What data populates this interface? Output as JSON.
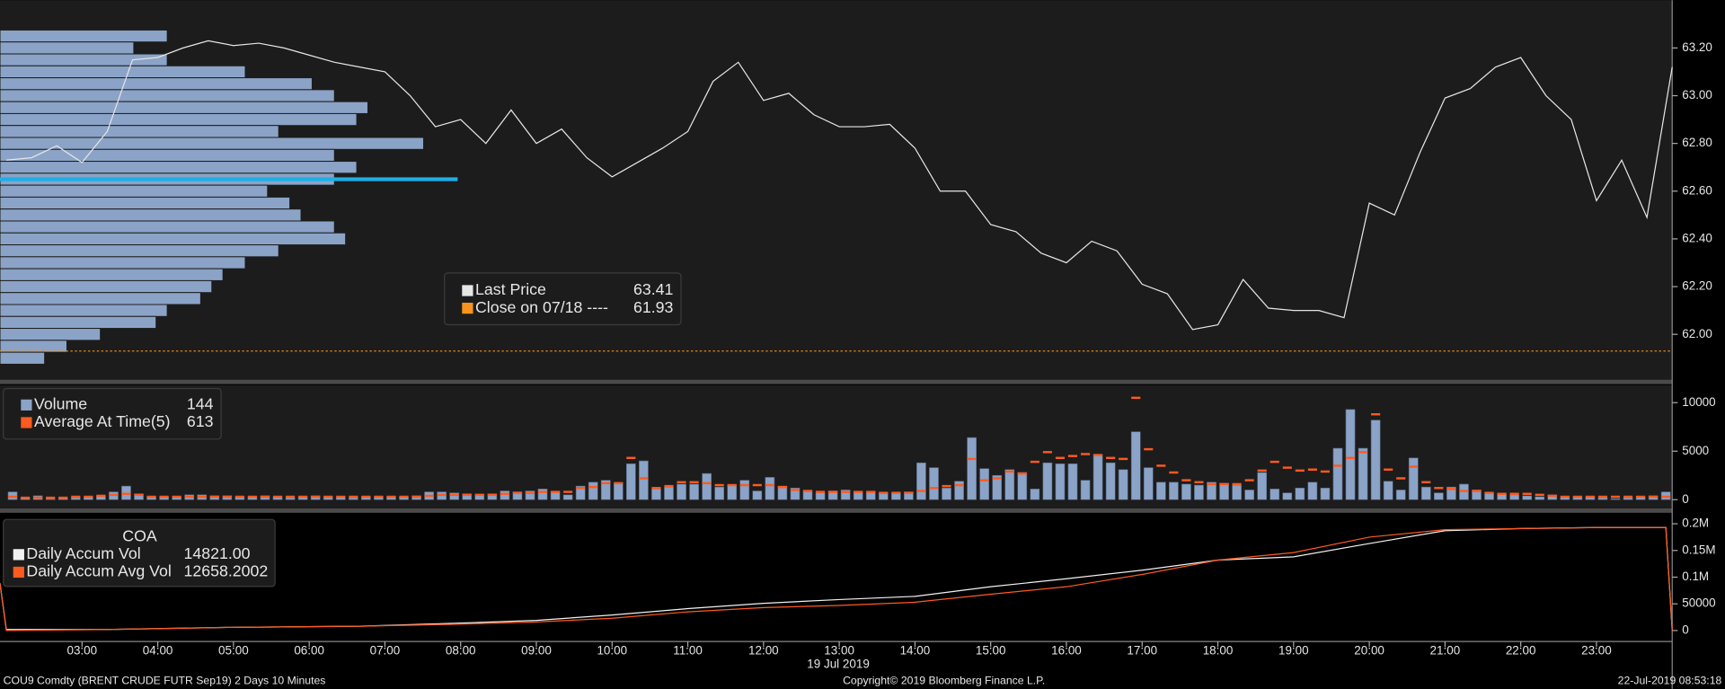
{
  "chart_data": [
    {
      "type": "line",
      "xlim": [
        115,
        1440
      ],
      "ylim": [
        61.81,
        63.4
      ],
      "yticks": [
        {
          "value": 62,
          "label": "62.00"
        },
        {
          "value": 62.2,
          "label": "62.20"
        },
        {
          "value": 62.4,
          "label": "62.40"
        },
        {
          "value": 62.6,
          "label": "62.60"
        },
        {
          "value": 62.8,
          "label": "62.80"
        },
        {
          "value": 63,
          "label": "63.00"
        },
        {
          "value": 63.2,
          "label": "63.20"
        }
      ],
      "x": [
        120,
        140,
        160,
        180,
        200,
        220,
        240,
        260,
        280,
        300,
        320,
        340,
        360,
        380,
        400,
        420,
        440,
        460,
        480,
        500,
        520,
        540,
        560,
        580,
        600,
        620,
        640,
        660,
        680,
        700,
        720,
        740,
        760,
        780,
        800,
        820,
        840,
        860,
        880,
        900,
        920,
        940,
        960,
        980,
        1000,
        1020,
        1040,
        1060,
        1080,
        1100,
        1120,
        1140,
        1160,
        1180,
        1200,
        1220,
        1240,
        1260,
        1280,
        1300,
        1320,
        1340,
        1360,
        1380,
        1400,
        1420,
        1440
      ],
      "series": [
        {
          "name": "Last Price",
          "legend_value": 63.41,
          "color": "#e6e6e6",
          "values": [
            62.73,
            62.74,
            62.79,
            62.72,
            62.85,
            63.15,
            63.16,
            63.2,
            63.23,
            63.21,
            63.22,
            63.2,
            63.17,
            63.14,
            63.12,
            63.1,
            63.0,
            62.87,
            62.9,
            62.8,
            62.94,
            62.8,
            62.86,
            62.74,
            62.66,
            62.72,
            62.78,
            62.85,
            63.06,
            63.14,
            62.98,
            63.01,
            62.92,
            62.87,
            62.87,
            62.88,
            62.78,
            62.6,
            62.6,
            62.46,
            62.43,
            62.34,
            62.3,
            62.39,
            62.35,
            62.21,
            62.17,
            62.02,
            62.04,
            62.23,
            62.11,
            62.1,
            62.1,
            62.07,
            62.55,
            62.5,
            62.76,
            62.99,
            63.03,
            63.12,
            63.16,
            63.0,
            62.9,
            62.56,
            62.73,
            62.49,
            63.12
          ]
        }
      ],
      "close": {
        "label": "Close on 07/18 ----",
        "value": 61.93,
        "color": "#f7941d"
      },
      "profile": {
        "levels": [
          63.25,
          63.2,
          63.15,
          63.1,
          63.05,
          63,
          62.95,
          62.9,
          62.85,
          62.8,
          62.75,
          62.7,
          62.65,
          62.6,
          62.55,
          62.5,
          62.45,
          62.4,
          62.35,
          62.3,
          62.25,
          62.2,
          62.15,
          62.1,
          62.05,
          62,
          61.95,
          61.9
        ],
        "values": [
          150,
          120,
          150,
          220,
          280,
          300,
          330,
          320,
          250,
          380,
          300,
          320,
          300,
          240,
          260,
          270,
          300,
          310,
          250,
          220,
          200,
          190,
          180,
          150,
          140,
          90,
          60,
          40
        ],
        "xlim": [
          0,
          1500
        ],
        "color": "#8ba3c7"
      },
      "poc": {
        "value": 62.65,
        "color": "#1ab0e8"
      }
    },
    {
      "type": "bar",
      "xlim": [
        115,
        1440
      ],
      "ylim": [
        -900,
        11800
      ],
      "yticks": [
        0,
        5000,
        10000
      ],
      "x": [
        120,
        130,
        140,
        150,
        160,
        170,
        180,
        190,
        200,
        210,
        220,
        230,
        240,
        250,
        260,
        270,
        280,
        290,
        300,
        310,
        320,
        330,
        340,
        350,
        360,
        370,
        380,
        390,
        400,
        410,
        420,
        430,
        440,
        450,
        460,
        470,
        480,
        490,
        500,
        510,
        520,
        530,
        540,
        550,
        560,
        570,
        580,
        590,
        600,
        610,
        620,
        630,
        640,
        650,
        660,
        670,
        680,
        690,
        700,
        710,
        720,
        730,
        740,
        750,
        760,
        770,
        780,
        790,
        800,
        810,
        820,
        830,
        840,
        850,
        860,
        870,
        880,
        890,
        900,
        910,
        920,
        930,
        940,
        950,
        960,
        970,
        980,
        990,
        1000,
        1010,
        1020,
        1030,
        1040,
        1050,
        1060,
        1070,
        1080,
        1090,
        1100,
        1110,
        1120,
        1130,
        1140,
        1150,
        1160,
        1170,
        1180,
        1190,
        1200,
        1210,
        1220,
        1230,
        1240,
        1250,
        1260,
        1270,
        1280,
        1290,
        1300,
        1310,
        1320,
        1330,
        1340,
        1350,
        1360,
        1370,
        1380,
        1390,
        1400,
        1410,
        1420,
        1430
      ],
      "series": [
        {
          "name": "Volume",
          "legend_value": 144,
          "color": "#8ba3c7",
          "values": [
            800,
            200,
            400,
            100,
            200,
            200,
            300,
            400,
            800,
            1400,
            600,
            300,
            300,
            300,
            500,
            500,
            400,
            400,
            300,
            300,
            400,
            300,
            200,
            300,
            400,
            300,
            300,
            200,
            300,
            300,
            300,
            300,
            400,
            800,
            800,
            700,
            600,
            500,
            600,
            900,
            800,
            900,
            1100,
            800,
            500,
            1400,
            1800,
            2000,
            1700,
            3700,
            4000,
            1100,
            1300,
            1600,
            1600,
            2700,
            1300,
            1500,
            2000,
            900,
            2300,
            1400,
            1200,
            900,
            700,
            900,
            1000,
            800,
            800,
            700,
            700,
            800,
            3800,
            3300,
            1200,
            1900,
            6400,
            3200,
            2500,
            3100,
            2800,
            1100,
            3800,
            3700,
            3700,
            2000,
            4600,
            3800,
            3100,
            7000,
            3300,
            1800,
            1800,
            1600,
            1500,
            1800,
            1700,
            1500,
            1000,
            2800,
            1100,
            700,
            1200,
            1800,
            1200,
            5300,
            9300,
            5300,
            8200,
            1900,
            1000,
            4300,
            1300,
            700,
            1300,
            1600,
            1000,
            700,
            600,
            500,
            400,
            300,
            500,
            300,
            300,
            300,
            200,
            100,
            200,
            300,
            400,
            800
          ]
        },
        {
          "name": "Average At Time(5)",
          "legend_value": 613,
          "color": "#ff5a1f",
          "values": [
            300,
            200,
            200,
            200,
            200,
            300,
            300,
            400,
            500,
            600,
            500,
            300,
            300,
            300,
            300,
            300,
            300,
            300,
            300,
            300,
            300,
            300,
            300,
            300,
            300,
            300,
            300,
            300,
            300,
            300,
            300,
            300,
            300,
            400,
            500,
            500,
            500,
            500,
            500,
            600,
            700,
            700,
            800,
            800,
            800,
            1200,
            1300,
            1700,
            1700,
            4300,
            2200,
            1200,
            1400,
            1800,
            1800,
            1700,
            1500,
            1500,
            1500,
            1500,
            1500,
            1300,
            1000,
            900,
            800,
            800,
            800,
            800,
            800,
            700,
            700,
            700,
            900,
            1200,
            1400,
            1500,
            4200,
            2000,
            2200,
            2900,
            2700,
            3900,
            4900,
            4300,
            4500,
            4700,
            4600,
            4300,
            4200,
            10500,
            5200,
            3500,
            2800,
            2000,
            1800,
            1600,
            1600,
            1600,
            2000,
            3000,
            3900,
            3300,
            3000,
            3100,
            2900,
            3500,
            4300,
            4900,
            8800,
            3100,
            2200,
            3400,
            1800,
            1200,
            1100,
            900,
            900,
            700,
            600,
            600,
            600,
            500,
            400,
            300,
            300,
            300,
            300,
            300,
            300,
            300,
            300,
            300
          ]
        }
      ]
    },
    {
      "type": "line",
      "title": "COA",
      "xlim": [
        115,
        1440
      ],
      "ylim": [
        -18500,
        218500
      ],
      "yticks": [
        0,
        50000,
        {
          "value": 100000,
          "label": "0.1M"
        },
        {
          "value": 150000,
          "label": "0.15M"
        },
        {
          "value": 200000,
          "label": "0.2M"
        }
      ],
      "xticks": [
        {
          "value": 180,
          "label": "03:00"
        },
        {
          "value": 240,
          "label": "04:00"
        },
        {
          "value": 300,
          "label": "05:00"
        },
        {
          "value": 360,
          "label": "06:00"
        },
        {
          "value": 420,
          "label": "07:00"
        },
        {
          "value": 480,
          "label": "08:00"
        },
        {
          "value": 540,
          "label": "09:00"
        },
        {
          "value": 600,
          "label": "10:00"
        },
        {
          "value": 660,
          "label": "11:00"
        },
        {
          "value": 720,
          "label": "12:00"
        },
        {
          "value": 780,
          "label": "13:00"
        },
        {
          "value": 840,
          "label": "14:00"
        },
        {
          "value": 900,
          "label": "15:00"
        },
        {
          "value": 960,
          "label": "16:00"
        },
        {
          "value": 1020,
          "label": "17:00"
        },
        {
          "value": 1080,
          "label": "18:00"
        },
        {
          "value": 1140,
          "label": "19:00"
        },
        {
          "value": 1200,
          "label": "20:00"
        },
        {
          "value": 1260,
          "label": "21:00"
        },
        {
          "value": 1320,
          "label": "22:00"
        },
        {
          "value": 1380,
          "label": "23:00"
        }
      ],
      "xlabel": "19 Jul 2019",
      "x": [
        115,
        120,
        200,
        300,
        400,
        480,
        540,
        600,
        660,
        720,
        780,
        840,
        900,
        960,
        1020,
        1080,
        1140,
        1200,
        1260,
        1320,
        1380,
        1435,
        1440
      ],
      "series": [
        {
          "name": "Daily Accum Vol",
          "legend_value": "14821.00",
          "color": "#f2f2f2",
          "values": [
            88500,
            2000,
            2000,
            6000,
            8000,
            14000,
            19000,
            29000,
            41000,
            51000,
            58000,
            64000,
            82000,
            97000,
            113000,
            132000,
            138000,
            163000,
            187000,
            191000,
            193000,
            193000,
            0
          ]
        },
        {
          "name": "Daily Accum Avg Vol",
          "legend_value": 12658.2002,
          "color": "#ff5a1f",
          "values": [
            88500,
            0,
            2000,
            6000,
            8000,
            12000,
            16000,
            23000,
            35000,
            43000,
            47000,
            53000,
            68000,
            82000,
            105000,
            132000,
            146000,
            175000,
            189000,
            191000,
            193000,
            193000,
            0
          ]
        }
      ]
    }
  ],
  "footer": {
    "left": "COU9 Comdty (BRENT CRUDE FUTR  Sep19) 2 Days 10 Minutes",
    "copyright": "Copyright© 2019 Bloomberg Finance L.P.",
    "timestamp": "22-Jul-2019 08:53:18"
  }
}
